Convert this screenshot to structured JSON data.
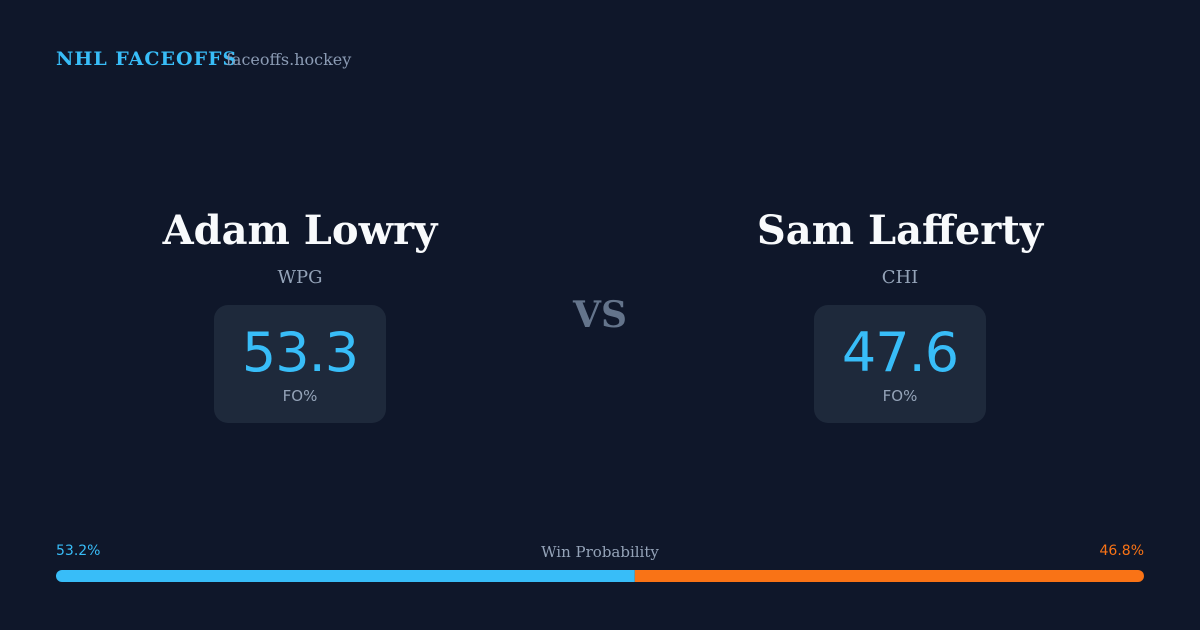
{
  "header": {
    "brand": "NHL FACEOFFS",
    "domain": "faceoffs.hockey"
  },
  "players": [
    {
      "name": "Adam Lowry",
      "team": "WPG",
      "fo_value": 53.3,
      "fo_label": "FO%"
    },
    {
      "name": "Sam Lafferty",
      "team": "CHI",
      "fo_value": 47.6,
      "fo_label": "FO%"
    }
  ],
  "versus": "VS",
  "win_probability": {
    "title": "Win Probability",
    "segments": [
      {
        "value": 53.2,
        "label": "53.2%",
        "color": "#38bdf8"
      },
      {
        "value": 46.8,
        "label": "46.8%",
        "color": "#f97316"
      }
    ]
  }
}
